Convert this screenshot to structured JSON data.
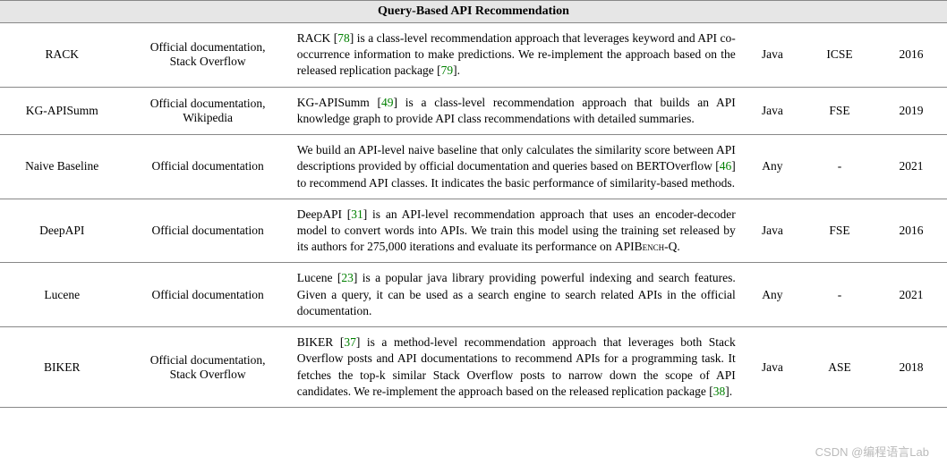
{
  "header": "Query-Based API Recommendation",
  "watermark": "CSDN @编程语言Lab",
  "rows": [
    {
      "name": "RACK",
      "source": "Official documentation,\nStack Overflow",
      "desc_parts": [
        {
          "t": "RACK ["
        },
        {
          "t": "78",
          "cite": true
        },
        {
          "t": "] is a class-level recommendation approach that leverages keyword and API co-occurrence information to make predictions. We re-implement the approach based on the released replication package ["
        },
        {
          "t": "79",
          "cite": true
        },
        {
          "t": "]."
        }
      ],
      "lang": "Java",
      "venue": "ICSE",
      "year": "2016"
    },
    {
      "name": "KG-APISumm",
      "source": "Official documentation,\nWikipedia",
      "desc_parts": [
        {
          "t": "KG-APISumm ["
        },
        {
          "t": "49",
          "cite": true
        },
        {
          "t": "] is a class-level recommendation approach that builds an API knowledge graph to provide API class recommendations with detailed summaries."
        }
      ],
      "lang": "Java",
      "venue": "FSE",
      "year": "2019"
    },
    {
      "name": "Naive Baseline",
      "source": "Official documentation",
      "desc_parts": [
        {
          "t": "We build an API-level naive baseline that only calculates the similarity score between API descriptions provided by official documentation and queries based on BERTOverflow ["
        },
        {
          "t": "46",
          "cite": true
        },
        {
          "t": "] to recommend API classes. It indicates the basic performance of similarity-based methods."
        }
      ],
      "lang": "Any",
      "venue": "-",
      "year": "2021"
    },
    {
      "name": "DeepAPI",
      "source": "Official documentation",
      "desc_parts": [
        {
          "t": "DeepAPI ["
        },
        {
          "t": "31",
          "cite": true
        },
        {
          "t": "] is an API-level recommendation approach that uses an encoder-decoder model to convert words into APIs. We train this model using the training set released by its authors for 275,000 iterations and evaluate its performance on "
        },
        {
          "t": "APIBench-Q",
          "sc": true
        },
        {
          "t": "."
        }
      ],
      "lang": "Java",
      "venue": "FSE",
      "year": "2016"
    },
    {
      "name": "Lucene",
      "source": "Official documentation",
      "desc_parts": [
        {
          "t": "Lucene ["
        },
        {
          "t": "23",
          "cite": true
        },
        {
          "t": "] is a popular java library providing powerful indexing and search features. Given a query, it can be used as a search engine to search related APIs in the official documentation."
        }
      ],
      "lang": "Any",
      "venue": "-",
      "year": "2021"
    },
    {
      "name": "BIKER",
      "source": "Official documentation,\nStack Overflow",
      "desc_parts": [
        {
          "t": "BIKER ["
        },
        {
          "t": "37",
          "cite": true
        },
        {
          "t": "] is a method-level recommendation approach that leverages both Stack Overflow posts and API documentations to recommend APIs for a programming task. It fetches the top-k similar Stack Overflow posts to narrow down the scope of API candidates. We re-implement the approach based on the released replication package ["
        },
        {
          "t": "38",
          "cite": true
        },
        {
          "t": "]."
        }
      ],
      "lang": "Java",
      "venue": "ASE",
      "year": "2018"
    }
  ]
}
